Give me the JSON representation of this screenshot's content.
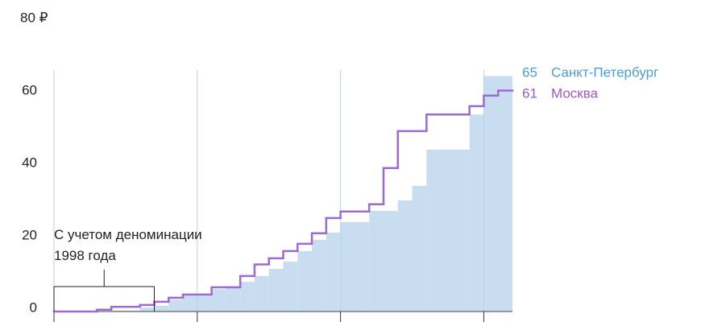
{
  "chart_data": {
    "type": "step",
    "ylim": [
      0,
      80
    ],
    "yticks": [
      0,
      20,
      40,
      {
        "value": 80,
        "label": "80 ₽"
      },
      60
    ],
    "xlim": [
      0,
      32
    ],
    "xgrid": [
      0,
      10,
      20,
      30
    ],
    "annotation": "С учетом деноминации 1998 года",
    "bracket": [
      0,
      7
    ],
    "series": [
      {
        "name": "Санкт-Петербург",
        "color": "#c9ddf0",
        "label_color": "#4a9fd8",
        "x": [
          0,
          4,
          6,
          7,
          8,
          9,
          11,
          12,
          13,
          14,
          15,
          16,
          17,
          18,
          19,
          20,
          22,
          24,
          25,
          26,
          29,
          30
        ],
        "values": [
          0,
          0.3,
          1.1,
          1.6,
          3.3,
          4.7,
          6.2,
          7,
          8.2,
          9.8,
          11.8,
          13.8,
          16.7,
          19.8,
          21.8,
          24.7,
          27.8,
          30.7,
          34.7,
          44.7,
          54.4,
          65
        ]
      },
      {
        "name": "Москва",
        "color": "#9b6bd1",
        "label_color": "#9b59d0",
        "x": [
          0,
          3,
          4,
          6,
          7,
          8,
          9,
          11,
          13,
          14,
          15,
          16,
          17,
          18,
          19,
          20,
          22,
          23,
          24,
          26,
          29,
          30,
          31
        ],
        "values": [
          0,
          0.5,
          1.3,
          1.8,
          2.7,
          3.8,
          4.7,
          6.7,
          9.8,
          13,
          14.7,
          16.7,
          18.7,
          21.6,
          25.8,
          27.6,
          29.6,
          39.6,
          49.8,
          54.4,
          56.7,
          59.6,
          61
        ]
      }
    ]
  }
}
